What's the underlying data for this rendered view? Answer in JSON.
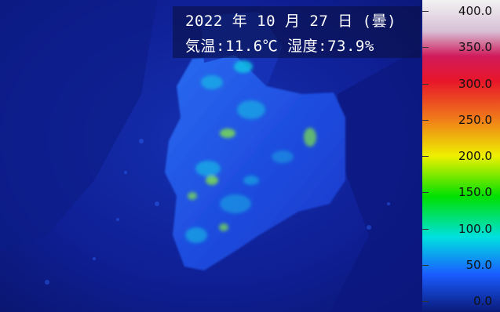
{
  "overlay": {
    "date": "2022 年 10 月 27 日 (曇)",
    "weather": "気温:11.6℃ 湿度:73.9%"
  },
  "scale": {
    "ticks": [
      "400.0",
      "350.0",
      "300.0",
      "250.0",
      "200.0",
      "150.0",
      "100.0",
      "50.0",
      "0.0"
    ],
    "stops": [
      "#f2f2f2",
      "#d7c0d6",
      "#d01b5a",
      "#e8162a",
      "#f07a1a",
      "#eef000",
      "#00e000",
      "#00e0e0",
      "#1a5cff",
      "#0a1a7a"
    ]
  },
  "colors": {
    "background": "#0a1a7a",
    "rock_dark": "#1227b5",
    "rock_mid": "#1f4ae0",
    "hot_cyan": "#14c8e6",
    "hot_green": "#7ee44a"
  }
}
